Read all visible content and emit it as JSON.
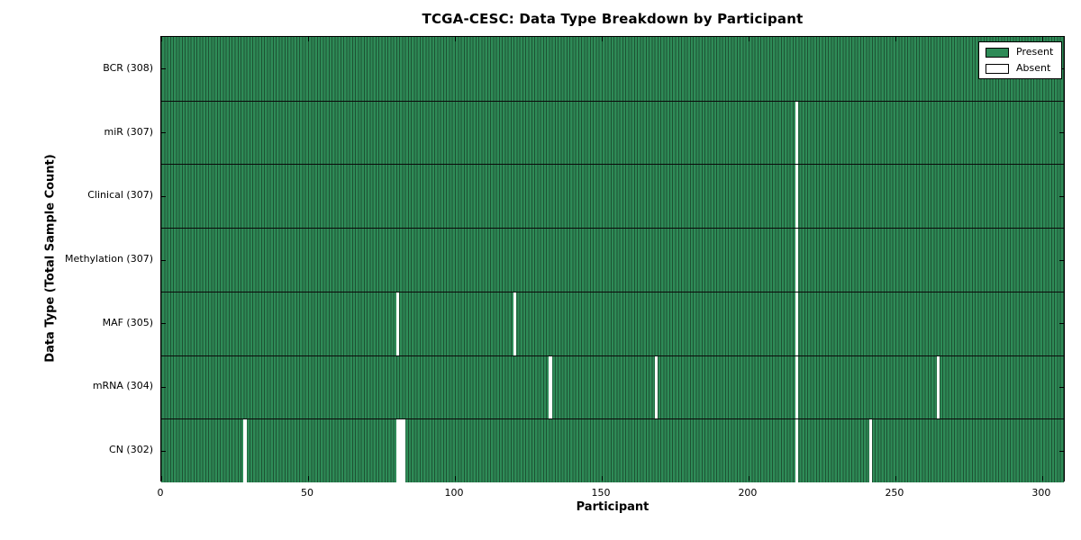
{
  "chart_data": {
    "type": "heatmap",
    "title": "TCGA-CESC: Data Type Breakdown by Participant",
    "xlabel": "Participant",
    "ylabel": "Data Type (Total Sample Count)",
    "xlim": [
      0,
      308
    ],
    "x_ticks": [
      "0",
      "50",
      "100",
      "150",
      "200",
      "250",
      "300"
    ],
    "x_tick_values": [
      0,
      50,
      100,
      150,
      200,
      250,
      300
    ],
    "n_participants": 308,
    "grid": false,
    "legend_position": "upper right",
    "colors": {
      "present": "#2E8B57",
      "present_edge": "#1d5233",
      "absent": "#FFFFFF",
      "axis": "#000000"
    },
    "legend": {
      "entries": [
        {
          "label": "Present",
          "color": "#2E8B57"
        },
        {
          "label": "Absent",
          "color": "#FFFFFF"
        }
      ]
    },
    "rows": [
      {
        "label": "BCR (308)",
        "data_type": "BCR",
        "present_count": 308,
        "absent_participants": []
      },
      {
        "label": "miR (307)",
        "data_type": "miR",
        "present_count": 307,
        "absent_participants": [
          216
        ]
      },
      {
        "label": "Clinical (307)",
        "data_type": "Clinical",
        "present_count": 307,
        "absent_participants": [
          216
        ]
      },
      {
        "label": "Methylation (307)",
        "data_type": "Methylation",
        "present_count": 307,
        "absent_participants": [
          216
        ]
      },
      {
        "label": "MAF (305)",
        "data_type": "MAF",
        "present_count": 305,
        "absent_participants": [
          80,
          120,
          216
        ]
      },
      {
        "label": "mRNA (304)",
        "data_type": "mRNA",
        "present_count": 304,
        "absent_participants": [
          132,
          168,
          216,
          264
        ]
      },
      {
        "label": "CN (302)",
        "data_type": "CN",
        "present_count": 302,
        "absent_participants": [
          28,
          80,
          81,
          82,
          216,
          241
        ]
      }
    ]
  }
}
